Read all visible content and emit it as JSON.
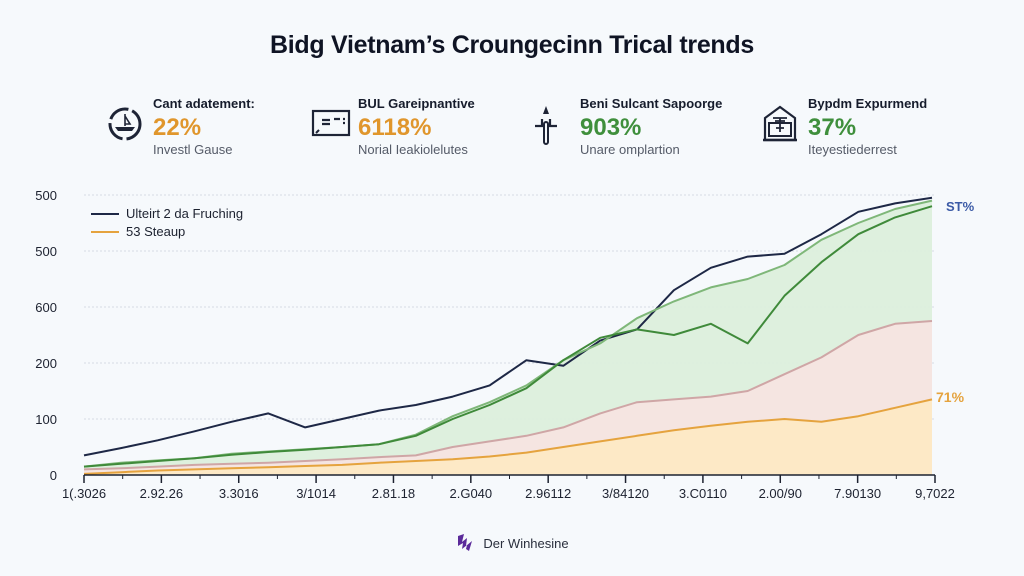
{
  "title": "Bidg Vietnam’s Croungecinn Trical trends",
  "kpis": [
    {
      "icon": "ship-compass-icon",
      "label": "Cant adatement:",
      "value": "22%",
      "sub": "Investl Gause",
      "color": "#e0962c"
    },
    {
      "icon": "credit-card-icon",
      "label": "BUL Gareipnantive",
      "value": "6118%",
      "sub": "Norial Ieakiolelutes",
      "color": "#e0962c"
    },
    {
      "icon": "cross-signpost-icon",
      "label": "Beni Sulcant Sapoorge",
      "value": "903%",
      "sub": "Unare omplartion",
      "color": "#3f8f3c"
    },
    {
      "icon": "school-house-icon",
      "label": "Bypdm Expurmend",
      "value": "37%",
      "sub": "Iteyestiederrest",
      "color": "#3f8f3c"
    }
  ],
  "footer": {
    "icon": "brand-logo-icon",
    "brand": "Der Winhesine",
    "logo_color": "#5b2a9a"
  },
  "chart_data": {
    "type": "area",
    "title": "",
    "xlabel": "",
    "ylabel": "",
    "y_tick_labels": [
      "0",
      "100",
      "200",
      "600",
      "500",
      "500"
    ],
    "x_tick_labels": [
      "1(.3026",
      "2.92.26",
      "3.3016",
      "3/1014",
      "2.81.18",
      "2.G040",
      "2.96112",
      "3/84120",
      "3.C0110",
      "2.00/90",
      "7.90130",
      "9,7022"
    ],
    "ylim": [
      0,
      5
    ],
    "y_unit": "gridline index (axis labels are non-monotonic)",
    "grid": true,
    "legend_position": "top-left",
    "legend": [
      {
        "name": "Ulteirt 2 da Fruching",
        "color": "#1e2846"
      },
      {
        "name": "53 Steaup",
        "color": "#e5a33e"
      }
    ],
    "x": [
      0,
      0.5,
      1,
      1.5,
      2,
      2.5,
      3,
      3.5,
      4,
      4.5,
      5,
      5.5,
      6,
      6.5,
      7,
      7.5,
      8,
      8.5,
      9,
      9.5,
      10,
      10.5,
      11,
      11.5
    ],
    "series": [
      {
        "name": "Ulteirt 2 da Fruching",
        "color": "#1e2846",
        "fill": "none",
        "values": [
          0.35,
          0.48,
          0.62,
          0.78,
          0.95,
          1.1,
          0.85,
          1.0,
          1.15,
          1.25,
          1.4,
          1.6,
          2.05,
          1.95,
          2.4,
          2.6,
          3.3,
          3.7,
          3.9,
          3.95,
          4.3,
          4.7,
          4.85,
          4.95
        ]
      },
      {
        "name": "Green upper",
        "color": "#7fb779",
        "fill": "#dcefdc",
        "values": [
          0.15,
          0.22,
          0.26,
          0.3,
          0.38,
          0.42,
          0.46,
          0.5,
          0.55,
          0.72,
          1.05,
          1.3,
          1.6,
          2.05,
          2.35,
          2.8,
          3.1,
          3.35,
          3.5,
          3.75,
          4.2,
          4.5,
          4.75,
          4.9
        ]
      },
      {
        "name": "Green lower",
        "color": "#3f8a3a",
        "fill": "none",
        "values": [
          0.15,
          0.2,
          0.25,
          0.3,
          0.36,
          0.41,
          0.45,
          0.5,
          0.55,
          0.7,
          1.0,
          1.25,
          1.55,
          2.05,
          2.45,
          2.6,
          2.5,
          2.7,
          2.35,
          3.2,
          3.8,
          4.3,
          4.6,
          4.8
        ]
      },
      {
        "name": "Pink",
        "color": "#cfa6a6",
        "fill": "#f5e4e0",
        "values": [
          0.1,
          0.12,
          0.15,
          0.18,
          0.2,
          0.22,
          0.25,
          0.28,
          0.32,
          0.35,
          0.5,
          0.6,
          0.7,
          0.85,
          1.1,
          1.3,
          1.35,
          1.4,
          1.5,
          1.8,
          2.1,
          2.5,
          2.7,
          2.75
        ]
      },
      {
        "name": "53 Steaup",
        "color": "#e5a33e",
        "fill": "#fde9c4",
        "values": [
          0.02,
          0.05,
          0.08,
          0.1,
          0.12,
          0.14,
          0.16,
          0.18,
          0.22,
          0.25,
          0.28,
          0.33,
          0.4,
          0.5,
          0.6,
          0.7,
          0.8,
          0.88,
          0.95,
          1.0,
          0.95,
          1.05,
          1.2,
          1.35
        ]
      }
    ],
    "annotations": [
      {
        "text": "ST%",
        "color": "#3b5aa6",
        "series": "Ulteirt 2 da Fruching"
      },
      {
        "text": "71%",
        "color": "#e5a33e",
        "series": "53 Steaup"
      }
    ]
  }
}
